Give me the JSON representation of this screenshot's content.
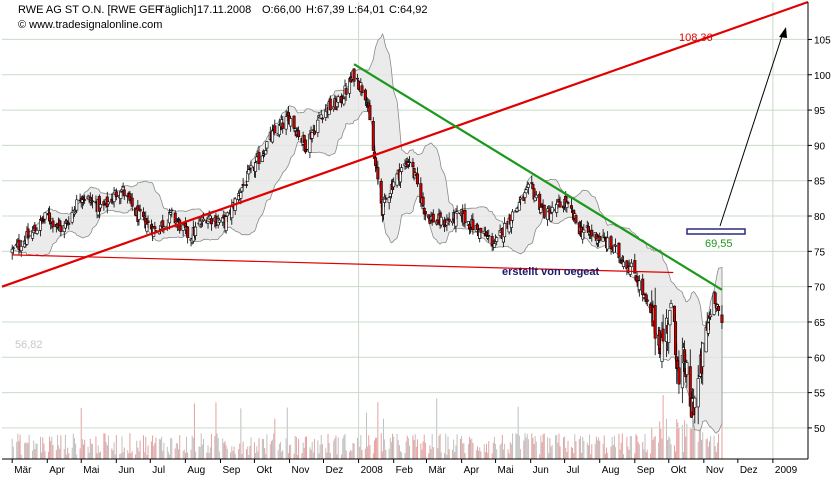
{
  "header": {
    "instrument": "RWE AG ST O.N. [RWE GER",
    "interval": "Täglich]",
    "date": "17.11.2008",
    "open": "O:66,00",
    "high": "H:67,39",
    "low": "L:64,01",
    "close": "C:64,92",
    "source": "© www.tradesignalonline.com"
  },
  "colors": {
    "candle_up": "#ffffff",
    "candle_down": "#cc0000",
    "bollinger": "#e6e6e6",
    "trend_red": "#e00000",
    "trend_green": "#1a9a1a",
    "header_red": "#cc0000",
    "grid": "#c8dcc8"
  },
  "chart_data": {
    "type": "candlestick",
    "title": "RWE AG ST O.N. [RWE GER Täglich]",
    "ylim": [
      45.6,
      110.3
    ],
    "y_ticks": [
      "105",
      "100",
      "95",
      "90",
      "85",
      "80",
      "75",
      "70",
      "65",
      "60",
      "55",
      "50"
    ],
    "x_ticks": [
      "Mär",
      "Apr",
      "Mai",
      "Jun",
      "Jul",
      "Aug",
      "Sep",
      "Okt",
      "Nov",
      "Dez",
      "2008",
      "Feb",
      "Mär",
      "Apr",
      "Mai",
      "Jun",
      "Jul",
      "Aug",
      "Sep",
      "Okt",
      "Nov",
      "Dez",
      "2009"
    ],
    "grid": true,
    "last_bar": {
      "date": "17.11.2008",
      "open": 66.0,
      "high": 67.39,
      "low": 64.01,
      "close": 64.92
    },
    "price_path": [
      [
        "2007-03-01",
        75
      ],
      [
        "2007-03-15",
        77
      ],
      [
        "2007-04-01",
        80
      ],
      [
        "2007-04-15",
        78
      ],
      [
        "2007-05-01",
        83
      ],
      [
        "2007-05-20",
        81
      ],
      [
        "2007-06-05",
        84
      ],
      [
        "2007-06-20",
        80
      ],
      [
        "2007-07-05",
        78
      ],
      [
        "2007-07-20",
        80
      ],
      [
        "2007-08-05",
        77
      ],
      [
        "2007-08-20",
        80
      ],
      [
        "2007-09-05",
        79
      ],
      [
        "2007-09-20",
        84
      ],
      [
        "2007-10-01",
        87
      ],
      [
        "2007-10-15",
        91
      ],
      [
        "2007-11-01",
        94
      ],
      [
        "2007-11-15",
        90
      ],
      [
        "2007-12-01",
        95
      ],
      [
        "2007-12-15",
        96
      ],
      [
        "2007-12-28",
        100
      ],
      [
        "2008-01-08",
        97
      ],
      [
        "2008-01-15",
        88
      ],
      [
        "2008-01-22",
        81
      ],
      [
        "2008-02-01",
        85
      ],
      [
        "2008-02-15",
        88
      ],
      [
        "2008-03-01",
        80
      ],
      [
        "2008-03-15",
        79
      ],
      [
        "2008-04-01",
        80
      ],
      [
        "2008-04-15",
        78
      ],
      [
        "2008-05-01",
        76
      ],
      [
        "2008-05-15",
        80
      ],
      [
        "2008-06-01",
        84
      ],
      [
        "2008-06-15",
        80
      ],
      [
        "2008-07-01",
        82
      ],
      [
        "2008-07-15",
        78
      ],
      [
        "2008-08-01",
        77
      ],
      [
        "2008-08-15",
        75
      ],
      [
        "2008-09-01",
        72
      ],
      [
        "2008-09-15",
        66
      ],
      [
        "2008-09-25",
        62
      ],
      [
        "2008-10-05",
        68
      ],
      [
        "2008-10-10",
        55
      ],
      [
        "2008-10-15",
        60
      ],
      [
        "2008-10-20",
        52
      ],
      [
        "2008-10-28",
        57
      ],
      [
        "2008-11-03",
        63
      ],
      [
        "2008-11-10",
        69
      ],
      [
        "2008-11-17",
        64.92
      ]
    ],
    "trend_lines": [
      {
        "color": "red",
        "from": [
          "2007-02-20",
          70
        ],
        "to": [
          "2009-02-01",
          110.3
        ],
        "label": "108,36"
      },
      {
        "color": "red",
        "from": [
          "2007-03-01",
          74.5
        ],
        "to": [
          "2008-10-05",
          72.0
        ],
        "label": ""
      },
      {
        "color": "green",
        "from": [
          "2007-12-28",
          101.5
        ],
        "to": [
          "2008-11-17",
          69.55
        ],
        "label": "69,55"
      }
    ],
    "annotations": {
      "target_label": "108,36",
      "green_label": "69,55",
      "creator": "erstellt von oegeat",
      "watermark_value": "56,82"
    },
    "volume": {
      "shown": true,
      "position": "bottom"
    }
  }
}
